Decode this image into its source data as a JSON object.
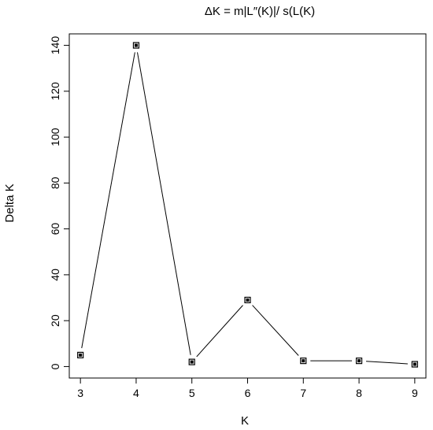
{
  "chart_data": {
    "type": "line",
    "title": "ΔK = m|L″(K)|/ s(L(K)",
    "xlabel": "K",
    "ylabel": "Delta K",
    "x": [
      3,
      4,
      5,
      6,
      7,
      8,
      9
    ],
    "values": [
      5,
      140,
      2,
      29,
      2.5,
      2.5,
      1
    ],
    "xlim": [
      2.8,
      9.2
    ],
    "ylim": [
      -5,
      145
    ],
    "xticks": [
      3,
      4,
      5,
      6,
      7,
      8,
      9
    ],
    "yticks": [
      0,
      20,
      40,
      60,
      80,
      100,
      120,
      140
    ],
    "grid": false,
    "legend": "none",
    "marker": "square"
  }
}
